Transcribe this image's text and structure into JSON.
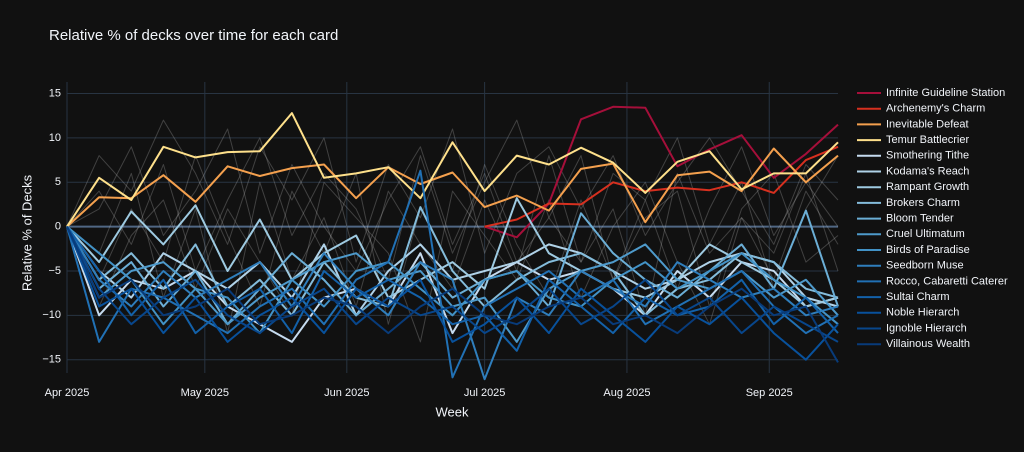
{
  "chart_data": {
    "type": "line",
    "title": "Relative  % of decks over time for each card",
    "xlabel": "Week",
    "ylabel": "Relative % of Decks",
    "x": [
      0,
      1,
      2,
      3,
      4,
      5,
      6,
      7,
      8,
      9,
      10,
      11,
      12,
      13,
      14,
      15,
      16,
      17,
      18,
      19,
      20,
      21,
      22,
      23,
      24
    ],
    "xlim": [
      0,
      24
    ],
    "xticks": [
      {
        "value": 0,
        "label": "Apr 2025"
      },
      {
        "value": 4.29,
        "label": "May 2025"
      },
      {
        "value": 8.71,
        "label": "Jun 2025"
      },
      {
        "value": 13,
        "label": "Jul 2025"
      },
      {
        "value": 17.43,
        "label": "Aug 2025"
      },
      {
        "value": 21.86,
        "label": "Sep 2025"
      }
    ],
    "ylim": [
      -16.5,
      16.3
    ],
    "yticks": [
      {
        "value": -15,
        "label": "−15"
      },
      {
        "value": -10,
        "label": "−10"
      },
      {
        "value": -5,
        "label": "−5"
      },
      0,
      5,
      10,
      15
    ],
    "grid": true,
    "legend": "right",
    "background_color": "rgba(190,190,190,0.28)",
    "background_series": [
      [
        0,
        8,
        4,
        12,
        6,
        -2,
        9,
        3,
        10,
        -4,
        7,
        1,
        11,
        -3,
        6,
        9,
        2,
        8,
        -1,
        5,
        10,
        4,
        -2,
        7,
        3
      ],
      [
        0,
        -3,
        6,
        -8,
        2,
        -12,
        5,
        -6,
        1,
        -9,
        4,
        -2,
        -7,
        3,
        -5,
        8,
        -4,
        2,
        -10,
        6,
        -3,
        1,
        -6,
        4,
        -2
      ],
      [
        0,
        4,
        -2,
        7,
        -5,
        3,
        10,
        -1,
        6,
        2,
        -6,
        8,
        -3,
        5,
        12,
        1,
        -4,
        6,
        3,
        -7,
        2,
        9,
        -1,
        5,
        0
      ],
      [
        0,
        -6,
        2,
        -4,
        8,
        -1,
        -9,
        4,
        -3,
        6,
        -11,
        2,
        -5,
        7,
        -2,
        -8,
        3,
        -6,
        1,
        4,
        -9,
        2,
        6,
        -4,
        -1
      ],
      [
        0,
        2,
        9,
        -1,
        4,
        11,
        -3,
        7,
        0,
        -5,
        3,
        9,
        -2,
        6,
        -4,
        1,
        8,
        -6,
        3,
        10,
        -2,
        5,
        -7,
        2,
        8
      ],
      [
        0,
        -9,
        -1,
        3,
        -7,
        2,
        -4,
        -10,
        5,
        1,
        -3,
        -13,
        4,
        -1,
        -6,
        3,
        -8,
        0,
        5,
        -4,
        -11,
        1,
        -3,
        6,
        -5
      ]
    ],
    "series": [
      {
        "name": "Infinite Guideline Station",
        "color": "#a50f3a",
        "values": [
          null,
          null,
          null,
          null,
          null,
          null,
          null,
          null,
          null,
          null,
          null,
          null,
          null,
          0,
          -1.2,
          2.6,
          12.1,
          13.5,
          13.4,
          6.8,
          8.7,
          10.3,
          5.5,
          8.2,
          11.5
        ]
      },
      {
        "name": "Archenemy's Charm",
        "color": "#d7301f",
        "values": [
          null,
          null,
          null,
          null,
          null,
          null,
          null,
          null,
          null,
          null,
          null,
          null,
          null,
          0,
          0.8,
          2.6,
          2.5,
          5,
          4,
          4.4,
          4.1,
          5,
          3.8,
          7.5,
          9
        ]
      },
      {
        "name": "Inevitable Defeat",
        "color": "#f4a04e",
        "values": [
          0,
          3.3,
          3.2,
          5.8,
          2.8,
          6.8,
          5.7,
          6.6,
          7,
          3.2,
          6.7,
          4.8,
          6.1,
          2.2,
          3.5,
          1.8,
          6.5,
          7.1,
          0.5,
          5.8,
          6.2,
          4,
          8.8,
          5,
          8
        ]
      },
      {
        "name": "Temur Battlecrier",
        "color": "#fee08b",
        "values": [
          0,
          5.5,
          3,
          9,
          7.8,
          8.4,
          8.5,
          12.8,
          5.5,
          6,
          6.7,
          3.2,
          9.5,
          4,
          8,
          7,
          8.9,
          7.2,
          3.8,
          7.3,
          8.5,
          4.2,
          6,
          6,
          9.5
        ]
      },
      {
        "name": "Smothering Tithe",
        "color": "#c6dbef",
        "values": [
          0,
          -10,
          -6,
          -7,
          -5,
          -9,
          -11,
          -13,
          -8,
          -7,
          -9,
          -3,
          -12,
          -6,
          -4,
          -6,
          -5,
          -7,
          -10,
          -5,
          -8,
          -4,
          -5,
          -9,
          -8
        ]
      },
      {
        "name": "Kodama's Reach",
        "color": "#b0d2e8",
        "values": [
          0,
          -5,
          -8,
          -3,
          -5,
          -7,
          -4,
          -8,
          -2,
          -10,
          -5,
          -2,
          -6,
          -5,
          -4,
          -2,
          -3,
          -5,
          -7,
          -6,
          -4,
          -3,
          -4,
          -8,
          -9
        ]
      },
      {
        "name": "Rampant Growth",
        "color": "#9ecae1",
        "values": [
          0,
          -4,
          1.7,
          -2,
          2.4,
          -5,
          0.8,
          -6,
          -3,
          -1,
          -8,
          -6,
          -4,
          -7,
          3.2,
          -3,
          -5,
          -7,
          -8,
          -6,
          -2,
          -4,
          -6,
          -9,
          -8
        ]
      },
      {
        "name": "Brokers Charm",
        "color": "#84bcdb",
        "values": [
          0,
          -6,
          -3,
          -7,
          -2,
          -9,
          -6,
          -10,
          -4,
          -8,
          -9,
          2.2,
          -5,
          -9,
          -6,
          -4,
          -3,
          -5,
          -10,
          -7,
          -6,
          -3,
          -4,
          -7,
          -8
        ]
      },
      {
        "name": "Bloom Tender",
        "color": "#6baed6",
        "values": [
          0,
          -7,
          -4,
          -9,
          -5,
          -11,
          -7,
          -3,
          -6,
          -10,
          -7,
          -4,
          -8,
          -6,
          -5,
          -9,
          1.5,
          -3,
          -6,
          -8,
          -5,
          -2,
          -7,
          1.8,
          -9
        ]
      },
      {
        "name": "Cruel Ultimatum",
        "color": "#4e9acb",
        "values": [
          0,
          -8,
          -5,
          -4,
          -7,
          -11,
          -8,
          -6,
          -4,
          -3,
          -6,
          -5,
          -9,
          -8,
          -13,
          -7,
          -5,
          -4,
          -2,
          -6,
          -7,
          -5,
          -8,
          -6,
          -10
        ]
      },
      {
        "name": "Birds of Paradise",
        "color": "#4292c6",
        "values": [
          0,
          -3,
          -6,
          -11,
          -7,
          -8,
          -12,
          -6,
          -9,
          -5,
          -4,
          -7,
          -10,
          -6,
          -5,
          -8,
          -9,
          -6,
          -4,
          -7,
          -5,
          -3,
          -6,
          -8,
          -11
        ]
      },
      {
        "name": "Seedborn Muse",
        "color": "#2f7ebc",
        "values": [
          0,
          -6,
          -9,
          -5,
          -8,
          -6,
          -4,
          -9,
          -3,
          -7,
          -10,
          -4,
          -6,
          -17.2,
          -8,
          -10,
          -5,
          -7,
          -9,
          -4,
          -6,
          -8,
          -7,
          -10,
          -9
        ]
      },
      {
        "name": "Rocco, Cabaretti Caterer",
        "color": "#2171b5",
        "values": [
          0,
          -13,
          -7,
          -8,
          -10,
          -12,
          -9,
          -7,
          -11,
          -6,
          -4,
          6.3,
          -17,
          -9,
          -7,
          -5,
          -8,
          -6,
          -11,
          -9,
          -7,
          -5,
          -9,
          -12,
          -10
        ]
      },
      {
        "name": "Sultai Charm",
        "color": "#1361a9",
        "values": [
          0,
          -5,
          -10,
          -6,
          -12,
          -9,
          -7,
          -12,
          -5,
          -8,
          -6,
          -8,
          -11,
          -10,
          -14,
          -6,
          -9,
          -12,
          -8,
          -10,
          -9,
          -6,
          -11,
          -8,
          -12
        ]
      },
      {
        "name": "Noble Hierarch",
        "color": "#08519c",
        "values": [
          0,
          -9,
          -7,
          -12,
          -8,
          -13,
          -10,
          -8,
          -12,
          -7,
          -9,
          -6,
          -13,
          -11,
          -8,
          -12,
          -7,
          -10,
          -13,
          -9,
          -11,
          -8,
          -12,
          -15,
          -11
        ]
      },
      {
        "name": "Ignoble Hierarch",
        "color": "#08468b",
        "values": [
          0,
          -7,
          -11,
          -8,
          -6,
          -10,
          -12,
          -9,
          -7,
          -11,
          -8,
          -10,
          -9,
          -12,
          -10,
          -7,
          -11,
          -9,
          -6,
          -10,
          -8,
          -12,
          -9,
          -11,
          -13
        ]
      },
      {
        "name": "Villainous Wealth",
        "color": "#083b7a",
        "values": [
          0,
          -8,
          -6,
          -10,
          -9,
          -7,
          -11,
          -10,
          -8,
          -9,
          -12,
          -9,
          -7,
          -10,
          -11,
          -9,
          -8,
          -11,
          -10,
          -12,
          -9,
          -7,
          -10,
          -9,
          -15.3
        ]
      }
    ]
  }
}
